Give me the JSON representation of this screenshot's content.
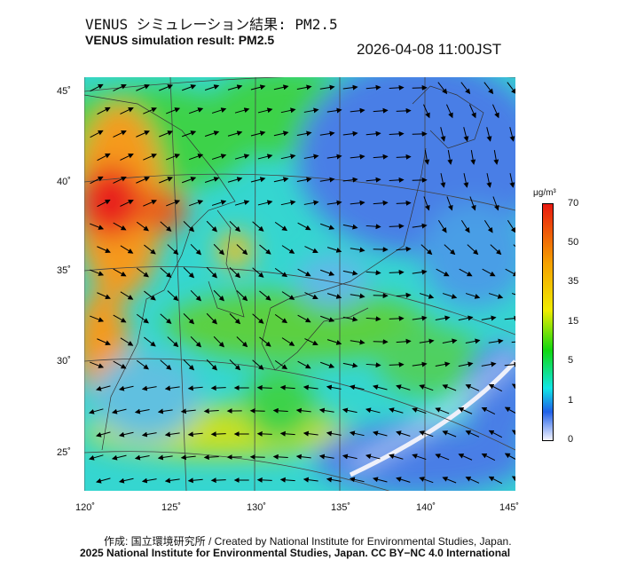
{
  "header": {
    "title_jp": "VENUS シミュレーション結果: PM2.5",
    "title_en": "VENUS simulation result: PM2.5",
    "timestamp": "2026-04-08 11:00JST"
  },
  "map": {
    "lat_labels": [
      "45˚",
      "40˚",
      "35˚",
      "30˚",
      "25˚"
    ],
    "lon_labels": [
      "120˚",
      "125˚",
      "130˚",
      "135˚",
      "140˚",
      "145˚"
    ],
    "field_colors": {
      "base": "#35d6d0",
      "high": "#e8201a",
      "orange": "#f59a1c",
      "yellow": "#e6e21e",
      "green": "#3cd24a",
      "blue": "#4a7ee6",
      "white": "#e8ecf8"
    },
    "wind_vectors": "arrows"
  },
  "colorbar": {
    "unit": "μg/m³",
    "ticks": [
      "70",
      "50",
      "35",
      "15",
      "5",
      "1",
      "0"
    ],
    "colors": [
      "#e81a10",
      "#f5a000",
      "#f0ec00",
      "#10d810",
      "#10e6e6",
      "#2060e8",
      "#f4f4ff"
    ]
  },
  "footer": {
    "credit_line1": "作成: 国立環境研究所 / Created by National Institute for Environmental Studies, Japan.",
    "credit_line2": "2025 National Institute for Environmental Studies, Japan. CC BY−NC 4.0 International"
  }
}
